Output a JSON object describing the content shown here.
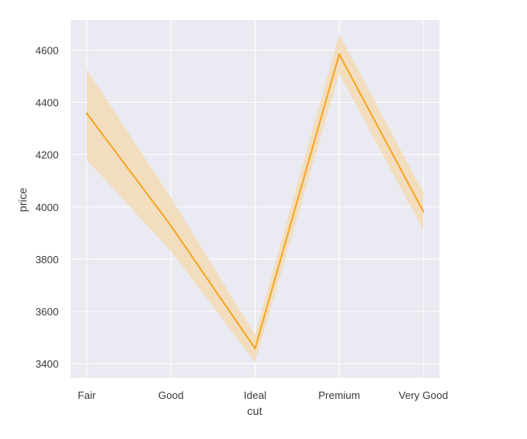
{
  "chart_data": {
    "type": "line",
    "xlabel": "cut",
    "ylabel": "price",
    "categories": [
      "Fair",
      "Good",
      "Ideal",
      "Premium",
      "Very Good"
    ],
    "series": [
      {
        "values": [
          4358,
          3928,
          3458,
          4584,
          3982
        ],
        "ci_lower": [
          4180,
          3830,
          3405,
          4510,
          3910
        ],
        "ci_upper": [
          4525,
          4035,
          3510,
          4660,
          4055
        ]
      }
    ],
    "yticks": [
      3400,
      3600,
      3800,
      4000,
      4200,
      4400,
      4600
    ],
    "ylim": [
      3345,
      4715
    ],
    "grid": true,
    "colors": {
      "background": "#eaeaf2",
      "grid": "#ffffff",
      "line": "#f5a623",
      "band": "#f3dbb5"
    }
  }
}
